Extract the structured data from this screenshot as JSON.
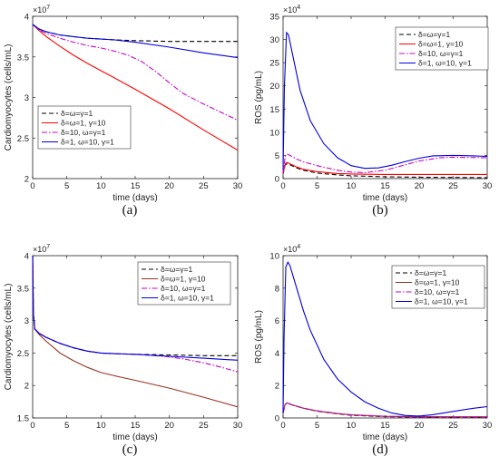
{
  "captions": [
    "(a)",
    "(b)",
    "(c)",
    "(d)"
  ],
  "chart_data": [
    {
      "type": "line",
      "title": "",
      "xlabel": "time (days)",
      "ylabel": "Cardiomyocytes (cells/mL)",
      "xlim": [
        0,
        30
      ],
      "ylim": [
        2,
        4
      ],
      "y_exponent": "×10^7",
      "xticks": [
        0,
        5,
        10,
        15,
        20,
        25,
        30
      ],
      "yticks": [
        2,
        2.5,
        3,
        3.5,
        4
      ],
      "grid": false,
      "legend": "bottom-left",
      "series": [
        {
          "name": "δ=ω=γ=1",
          "color": "#000000",
          "dash": "dashed",
          "x": [
            0,
            1,
            2,
            4,
            6,
            8,
            10,
            12,
            15,
            20,
            25,
            30
          ],
          "y": [
            3.9,
            3.84,
            3.81,
            3.77,
            3.75,
            3.73,
            3.72,
            3.71,
            3.7,
            3.69,
            3.69,
            3.69
          ]
        },
        {
          "name": "δ=ω=1, γ=10",
          "color": "#ff0000",
          "dash": "solid",
          "x": [
            0,
            1,
            2,
            4,
            6,
            8,
            10,
            12,
            15,
            20,
            25,
            30
          ],
          "y": [
            3.9,
            3.82,
            3.75,
            3.63,
            3.52,
            3.42,
            3.33,
            3.24,
            3.1,
            2.86,
            2.6,
            2.35
          ]
        },
        {
          "name": "δ=10, ω=γ=1",
          "color": "#cc00cc",
          "dash": "dashdot",
          "x": [
            0,
            1,
            2,
            4,
            6,
            8,
            10,
            12,
            14,
            16,
            18,
            20,
            22,
            25,
            28,
            30
          ],
          "y": [
            3.9,
            3.83,
            3.79,
            3.73,
            3.68,
            3.64,
            3.61,
            3.57,
            3.52,
            3.44,
            3.32,
            3.18,
            3.05,
            2.92,
            2.8,
            2.72
          ]
        },
        {
          "name": "δ=1, ω=10, γ=1",
          "color": "#0000dd",
          "dash": "solid",
          "x": [
            0,
            1,
            2,
            4,
            6,
            8,
            10,
            12,
            15,
            20,
            25,
            30
          ],
          "y": [
            3.9,
            3.84,
            3.81,
            3.77,
            3.75,
            3.73,
            3.72,
            3.71,
            3.68,
            3.62,
            3.55,
            3.49
          ]
        }
      ]
    },
    {
      "type": "line",
      "title": "",
      "xlabel": "time (days)",
      "ylabel": "ROS (pg/mL)",
      "xlim": [
        0,
        30
      ],
      "ylim": [
        0,
        35
      ],
      "y_exponent": "×10^4",
      "xticks": [
        0,
        5,
        10,
        15,
        20,
        25,
        30
      ],
      "yticks": [
        0,
        5,
        10,
        15,
        20,
        25,
        30,
        35
      ],
      "grid": false,
      "legend": "top-right",
      "series": [
        {
          "name": "δ=ω=γ=1",
          "color": "#000000",
          "dash": "dashed",
          "x": [
            0,
            0.3,
            0.6,
            1,
            2,
            3,
            5,
            8,
            10,
            15,
            20,
            25,
            30
          ],
          "y": [
            1.0,
            3.0,
            3.2,
            3.0,
            2.3,
            1.8,
            1.2,
            0.8,
            0.6,
            0.4,
            0.3,
            0.25,
            0.2
          ]
        },
        {
          "name": "δ=ω=1, γ=10",
          "color": "#ff0000",
          "dash": "solid",
          "x": [
            0,
            0.3,
            0.6,
            1,
            2,
            3,
            5,
            8,
            10,
            15,
            20,
            25,
            30
          ],
          "y": [
            1.0,
            3.2,
            3.5,
            3.2,
            2.5,
            2.0,
            1.5,
            1.1,
            1.0,
            0.9,
            0.9,
            0.9,
            0.9
          ]
        },
        {
          "name": "δ=10, ω=γ=1",
          "color": "#cc00cc",
          "dash": "dashdot",
          "x": [
            0,
            0.3,
            0.6,
            1,
            2,
            3,
            5,
            8,
            10,
            12,
            15,
            18,
            20,
            23,
            25,
            30
          ],
          "y": [
            1.0,
            4.8,
            5.3,
            5.0,
            4.2,
            3.6,
            2.8,
            1.8,
            1.4,
            1.3,
            1.8,
            3.0,
            3.8,
            4.5,
            4.6,
            4.5
          ]
        },
        {
          "name": "δ=1, ω=10, γ=1",
          "color": "#0000dd",
          "dash": "solid",
          "x": [
            0,
            0.2,
            0.5,
            0.8,
            1.5,
            2.5,
            4,
            6,
            8,
            10,
            12,
            14,
            16,
            18,
            20,
            22,
            25,
            28,
            30
          ],
          "y": [
            2.0,
            20,
            31.5,
            31.0,
            26.0,
            19.0,
            12.5,
            7.5,
            4.5,
            2.8,
            2.2,
            2.3,
            2.9,
            3.7,
            4.4,
            4.9,
            5.0,
            4.9,
            4.8
          ]
        }
      ]
    },
    {
      "type": "line",
      "title": "",
      "xlabel": "time (days)",
      "ylabel": "Cardiomyocytes (cells/mL)",
      "xlim": [
        0,
        30
      ],
      "ylim": [
        1.5,
        4
      ],
      "y_exponent": "×10^7",
      "xticks": [
        0,
        5,
        10,
        15,
        20,
        25,
        30
      ],
      "yticks": [
        1.5,
        2,
        2.5,
        3,
        3.5,
        4
      ],
      "grid": false,
      "legend": "top-right",
      "series": [
        {
          "name": "δ=ω=γ=1",
          "color": "#000000",
          "dash": "dashed",
          "x": [
            0,
            0.1,
            0.3,
            1,
            2,
            4,
            6,
            8,
            10,
            12,
            15,
            20,
            25,
            30
          ],
          "y": [
            4.0,
            3.1,
            2.87,
            2.8,
            2.74,
            2.65,
            2.58,
            2.53,
            2.5,
            2.49,
            2.48,
            2.47,
            2.46,
            2.46
          ]
        },
        {
          "name": "δ=ω=1, γ=10",
          "color": "#993322",
          "dash": "solid",
          "x": [
            0,
            0.1,
            0.3,
            1,
            2,
            4,
            6,
            8,
            10,
            12,
            15,
            20,
            25,
            30
          ],
          "y": [
            4.0,
            3.1,
            2.87,
            2.78,
            2.68,
            2.5,
            2.38,
            2.28,
            2.2,
            2.15,
            2.08,
            1.96,
            1.82,
            1.67
          ]
        },
        {
          "name": "δ=10, ω=γ=1",
          "color": "#cc00cc",
          "dash": "dashdot",
          "x": [
            0,
            0.1,
            0.3,
            1,
            2,
            4,
            6,
            8,
            10,
            12,
            15,
            18,
            20,
            22,
            25,
            28,
            30
          ],
          "y": [
            4.0,
            3.1,
            2.87,
            2.8,
            2.74,
            2.65,
            2.58,
            2.53,
            2.5,
            2.49,
            2.48,
            2.46,
            2.44,
            2.41,
            2.35,
            2.27,
            2.21
          ]
        },
        {
          "name": "δ=1, ω=10, γ=1",
          "color": "#0000dd",
          "dash": "solid",
          "x": [
            0,
            0.1,
            0.3,
            1,
            2,
            4,
            6,
            8,
            10,
            12,
            15,
            20,
            25,
            30
          ],
          "y": [
            4.0,
            3.1,
            2.87,
            2.8,
            2.74,
            2.65,
            2.58,
            2.53,
            2.5,
            2.49,
            2.48,
            2.45,
            2.42,
            2.39
          ]
        }
      ]
    },
    {
      "type": "line",
      "title": "",
      "xlabel": "time (days)",
      "ylabel": "ROS (pg/mL)",
      "xlim": [
        0,
        30
      ],
      "ylim": [
        0,
        10
      ],
      "y_exponent": "×10^4",
      "xticks": [
        0,
        5,
        10,
        15,
        20,
        25,
        30
      ],
      "yticks": [
        0,
        2,
        4,
        6,
        8,
        10
      ],
      "grid": false,
      "legend": "top-right",
      "series": [
        {
          "name": "δ=ω=γ=1",
          "color": "#000000",
          "dash": "dashed",
          "x": [
            0,
            0.3,
            0.6,
            1,
            2,
            3,
            5,
            8,
            10,
            15,
            20,
            25,
            30
          ],
          "y": [
            0.3,
            0.85,
            0.92,
            0.85,
            0.72,
            0.6,
            0.42,
            0.25,
            0.17,
            0.08,
            0.05,
            0.04,
            0.04
          ]
        },
        {
          "name": "δ=ω=1, γ=10",
          "color": "#993322",
          "dash": "solid",
          "x": [
            0,
            0.3,
            0.6,
            1,
            2,
            3,
            5,
            8,
            10,
            15,
            20,
            25,
            30
          ],
          "y": [
            0.3,
            0.85,
            0.92,
            0.85,
            0.72,
            0.6,
            0.43,
            0.27,
            0.19,
            0.1,
            0.08,
            0.07,
            0.07
          ]
        },
        {
          "name": "δ=10, ω=γ=1",
          "color": "#cc00cc",
          "dash": "dashdot",
          "x": [
            0,
            0.3,
            0.6,
            1,
            2,
            3,
            5,
            8,
            10,
            15,
            20,
            25,
            30
          ],
          "y": [
            0.3,
            0.85,
            0.93,
            0.86,
            0.73,
            0.61,
            0.44,
            0.28,
            0.2,
            0.1,
            0.06,
            0.05,
            0.05
          ]
        },
        {
          "name": "δ=1, ω=10, γ=1",
          "color": "#0000dd",
          "dash": "solid",
          "x": [
            0,
            0.15,
            0.4,
            0.7,
            1,
            2,
            3,
            4,
            6,
            8,
            10,
            12,
            14,
            16,
            18,
            20,
            22,
            25,
            28,
            30
          ],
          "y": [
            0.3,
            5,
            9.3,
            9.6,
            9.4,
            8.0,
            6.6,
            5.4,
            3.6,
            2.4,
            1.6,
            1.0,
            0.6,
            0.3,
            0.15,
            0.12,
            0.2,
            0.4,
            0.6,
            0.7
          ]
        }
      ]
    }
  ]
}
